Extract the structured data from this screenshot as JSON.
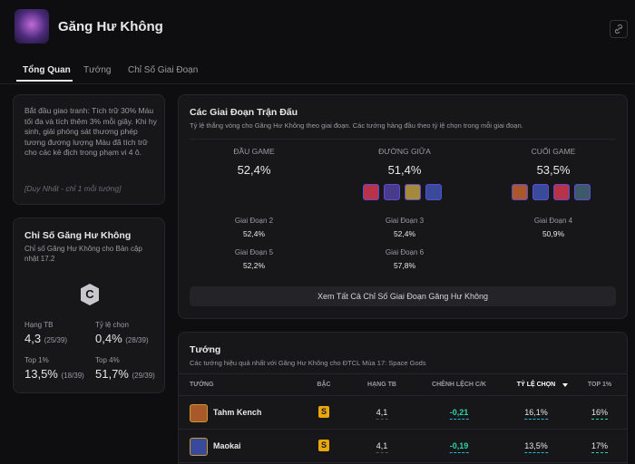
{
  "header": {
    "title": "Găng Hư Không"
  },
  "tabs": [
    "Tổng Quan",
    "Tướng",
    "Chỉ Số Giai Đoạn"
  ],
  "description": {
    "text": "Bắt đầu giao tranh: Tích trữ 30% Máu tối đa và tích thêm 3% mỗi giây. Khi hy sinh, giải phóng sát thương phép tương đương lượng Máu đã tích trữ cho các kẻ địch trong phạm vi 4 ô.",
    "note": "[Duy Nhất - chỉ 1 mỗi tướng]"
  },
  "stats": {
    "title": "Chỉ Số Găng Hư Không",
    "subtitle": "Chỉ số Găng Hư Không cho Bản cập nhật 17.2",
    "tier": "C",
    "items": [
      {
        "label": "Hạng TB",
        "value": "4,3",
        "rank": "(25/39)"
      },
      {
        "label": "Tỷ lệ chọn",
        "value": "0,4%",
        "rank": "(28/39)"
      },
      {
        "label": "Top 1%",
        "value": "13,5%",
        "rank": "(18/39)"
      },
      {
        "label": "Top 4%",
        "value": "51,7%",
        "rank": "(29/39)"
      }
    ]
  },
  "stages": {
    "title": "Các Giai Đoạn Trận Đấu",
    "subtitle": "Tỷ lệ thắng vòng cho Găng Hư Không theo giai đoạn. Các tướng hàng đầu theo tỷ lệ chọn trong mỗi giai đoạn.",
    "phases": [
      {
        "label": "ĐẦU GAME",
        "value": "52,4%"
      },
      {
        "label": "ĐƯỜNG GIỮA",
        "value": "51,4%"
      },
      {
        "label": "CUỐI GAME",
        "value": "53,5%"
      }
    ],
    "stage_list": [
      {
        "label": "Giai Đoạn 2",
        "value": "52,4%"
      },
      {
        "label": "Giai Đoạn 3",
        "value": "52,4%"
      },
      {
        "label": "Giai Đoạn 4",
        "value": "50,9%"
      },
      {
        "label": "Giai Đoạn 5",
        "value": "52,2%"
      },
      {
        "label": "Giai Đoạn 6",
        "value": "57,8%"
      }
    ],
    "button": "Xem Tất Cả Chỉ Số Giai Đoạn Găng Hư Không"
  },
  "champions": {
    "title": "Tướng",
    "subtitle": "Các tướng hiệu quả nhất với Găng Hư Không cho ĐTCL Mùa 17: Space Gods",
    "columns": [
      "TƯỚNG",
      "BẬC",
      "HẠNG TB",
      "CHÊNH LỆCH C/K",
      "TỶ LỆ CHỌN",
      "TOP 1%"
    ],
    "rows": [
      [
        "Tahm Kench",
        "S",
        "4,1",
        "-0,21",
        "16,1%",
        "16%"
      ],
      [
        "Maokai",
        "S",
        "4,1",
        "-0,19",
        "13,5%",
        "17%"
      ]
    ]
  }
}
